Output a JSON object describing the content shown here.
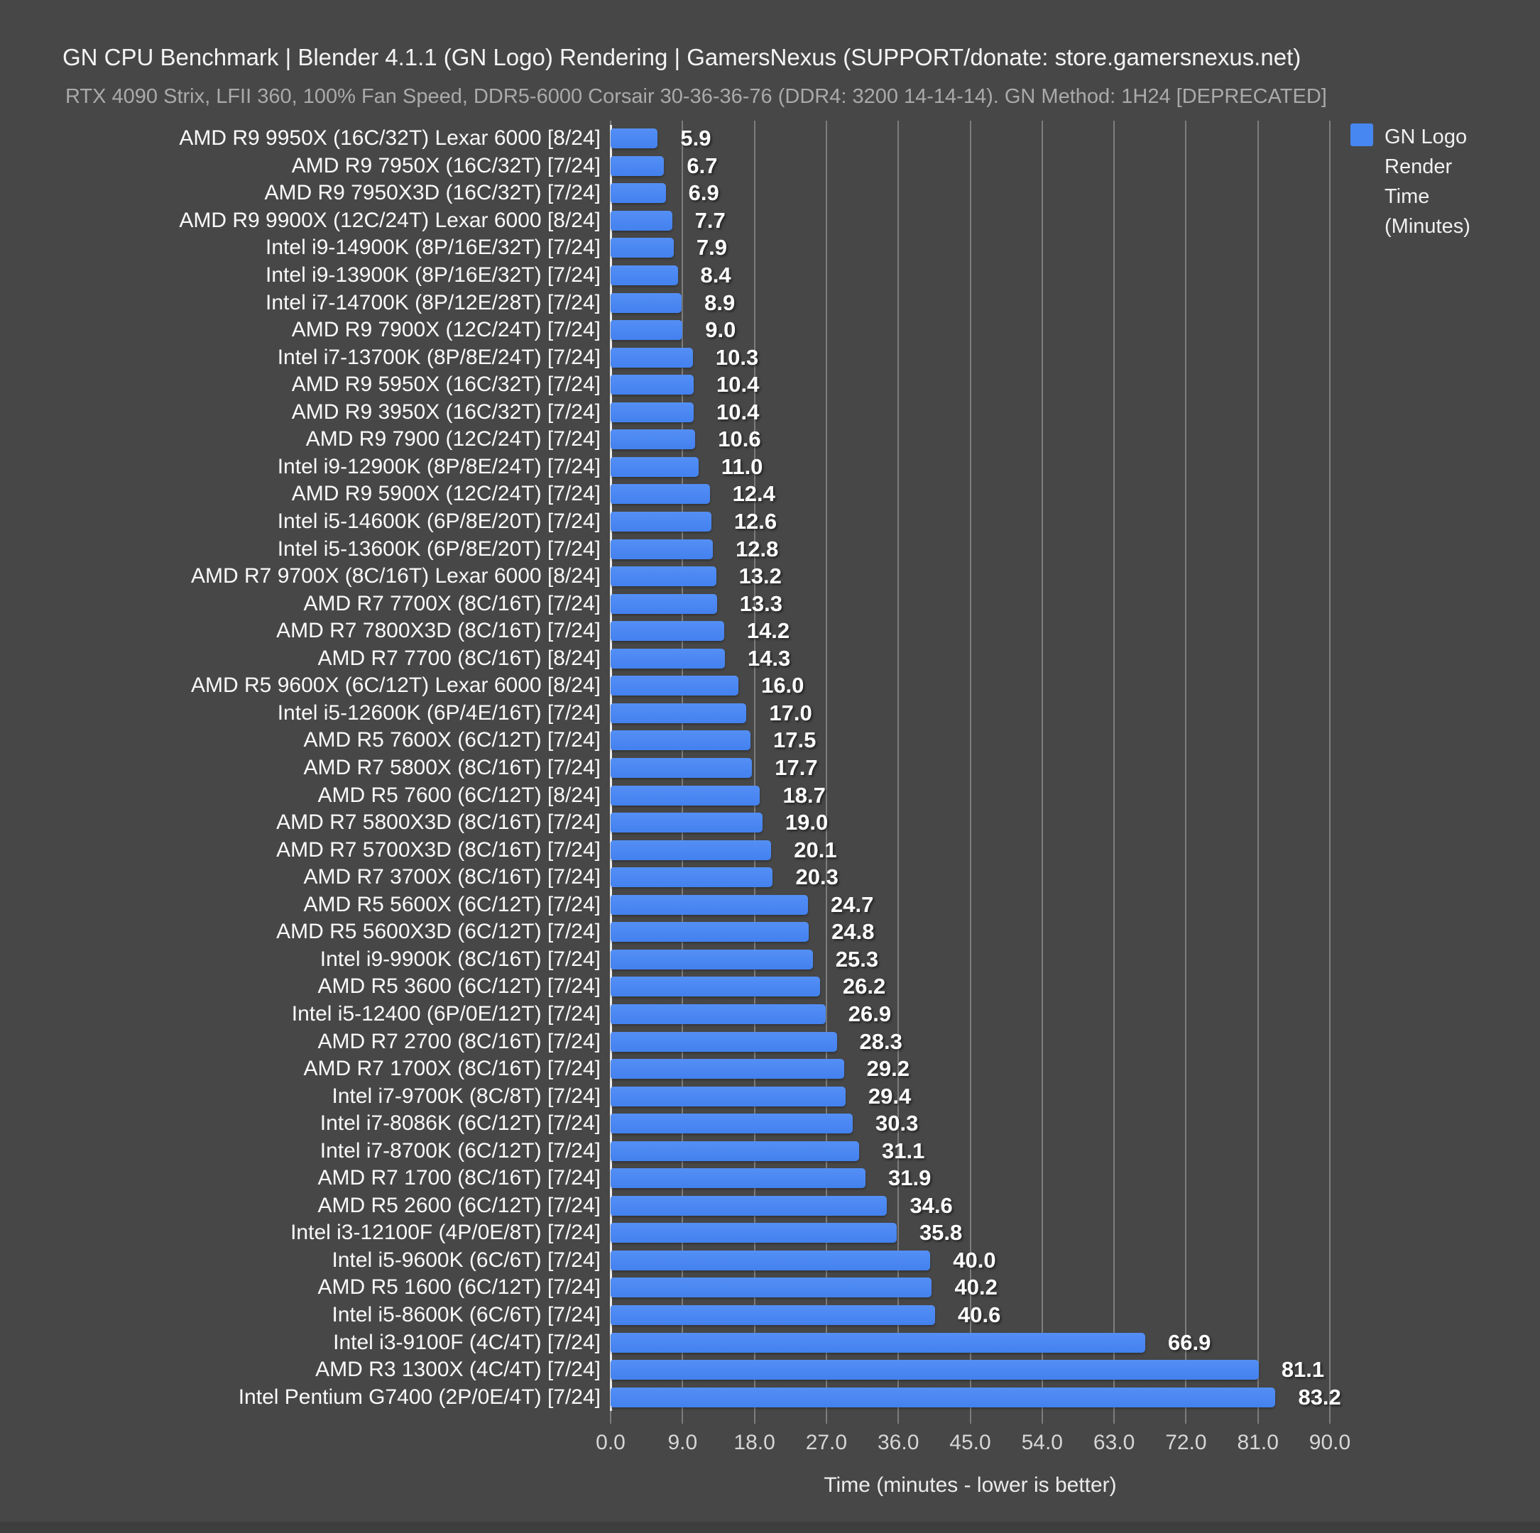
{
  "header": {
    "title": "GN CPU Benchmark | Blender 4.1.1 (GN Logo) Rendering | GamersNexus (SUPPORT/donate: store.gamersnexus.net)",
    "subtitle": "RTX 4090 Strix, LFII 360, 100% Fan Speed, DDR5-6000 Corsair 30-36-36-76 (DDR4: 3200 14-14-14). GN Method: 1H24 [DEPRECATED]"
  },
  "legend": {
    "label": "GN Logo Render Time (Minutes)",
    "swatch_color": "#4787f2"
  },
  "colors": {
    "background": "#474747",
    "bar": "#4787f2",
    "gridline": "#aaaaaa",
    "axis_line": "#ededed",
    "title_text": "#f4f4f4",
    "subtitle_text": "#aaaaaa",
    "value_text": "#ffffff"
  },
  "chart_data": {
    "type": "bar",
    "orientation": "horizontal",
    "title": "GN CPU Benchmark | Blender 4.1.1 (GN Logo) Rendering | GamersNexus (SUPPORT/donate: store.gamersnexus.net)",
    "subtitle": "RTX 4090 Strix, LFII 360, 100% Fan Speed, DDR5-6000 Corsair 30-36-36-76 (DDR4: 3200 14-14-14). GN Method: 1H24 [DEPRECATED]",
    "xlabel": "Time (minutes - lower is better)",
    "ylabel": "",
    "xlim": [
      0,
      90
    ],
    "xticks": [
      0,
      9,
      18,
      27,
      36,
      45,
      54,
      63,
      72,
      81,
      90
    ],
    "grid": true,
    "legend_entries": [
      "GN Logo Render Time (Minutes)"
    ],
    "legend_position": "top-right",
    "value_labels": true,
    "categories": [
      "AMD R9 9950X (16C/32T) Lexar 6000 [8/24]",
      "AMD R9 7950X (16C/32T) [7/24]",
      "AMD R9 7950X3D (16C/32T) [7/24]",
      "AMD R9 9900X (12C/24T) Lexar 6000 [8/24]",
      "Intel i9-14900K (8P/16E/32T) [7/24]",
      "Intel i9-13900K (8P/16E/32T) [7/24]",
      "Intel i7-14700K (8P/12E/28T) [7/24]",
      "AMD R9 7900X (12C/24T) [7/24]",
      "Intel i7-13700K (8P/8E/24T) [7/24]",
      "AMD R9 5950X (16C/32T) [7/24]",
      "AMD R9 3950X (16C/32T) [7/24]",
      "AMD R9 7900 (12C/24T) [7/24]",
      "Intel i9-12900K (8P/8E/24T) [7/24]",
      "AMD R9 5900X (12C/24T) [7/24]",
      "Intel i5-14600K (6P/8E/20T) [7/24]",
      "Intel i5-13600K (6P/8E/20T) [7/24]",
      "AMD R7 9700X (8C/16T) Lexar 6000 [8/24]",
      "AMD R7 7700X (8C/16T) [7/24]",
      "AMD R7 7800X3D (8C/16T) [7/24]",
      "AMD R7 7700 (8C/16T) [8/24]",
      "AMD R5 9600X (6C/12T) Lexar 6000 [8/24]",
      "Intel i5-12600K (6P/4E/16T) [7/24]",
      "AMD R5 7600X (6C/12T) [7/24]",
      "AMD R7 5800X (8C/16T) [7/24]",
      "AMD R5 7600 (6C/12T) [8/24]",
      "AMD R7 5800X3D (8C/16T) [7/24]",
      "AMD R7 5700X3D (8C/16T) [7/24]",
      "AMD R7 3700X (8C/16T) [7/24]",
      "AMD R5 5600X (6C/12T) [7/24]",
      "AMD R5 5600X3D (6C/12T) [7/24]",
      "Intel i9-9900K (8C/16T) [7/24]",
      "AMD R5 3600 (6C/12T) [7/24]",
      "Intel i5-12400 (6P/0E/12T) [7/24]",
      "AMD R7 2700 (8C/16T) [7/24]",
      "AMD R7 1700X (8C/16T) [7/24]",
      "Intel i7-9700K (8C/8T) [7/24]",
      "Intel i7-8086K (6C/12T) [7/24]",
      "Intel i7-8700K (6C/12T) [7/24]",
      "AMD R7 1700 (8C/16T) [7/24]",
      "AMD R5 2600 (6C/12T) [7/24]",
      "Intel i3-12100F (4P/0E/8T) [7/24]",
      "Intel i5-9600K (6C/6T) [7/24]",
      "AMD R5 1600 (6C/12T) [7/24]",
      "Intel i5-8600K (6C/6T) [7/24]",
      "Intel i3-9100F (4C/4T) [7/24]",
      "AMD R3 1300X (4C/4T) [7/24]",
      "Intel Pentium G7400 (2P/0E/4T) [7/24]"
    ],
    "values": [
      5.9,
      6.7,
      6.9,
      7.7,
      7.9,
      8.4,
      8.9,
      9.0,
      10.3,
      10.4,
      10.4,
      10.6,
      11.0,
      12.4,
      12.6,
      12.8,
      13.2,
      13.3,
      14.2,
      14.3,
      16.0,
      17.0,
      17.5,
      17.7,
      18.7,
      19.0,
      20.1,
      20.3,
      24.7,
      24.8,
      25.3,
      26.2,
      26.9,
      28.3,
      29.2,
      29.4,
      30.3,
      31.1,
      31.9,
      34.6,
      35.8,
      40.0,
      40.2,
      40.6,
      66.9,
      81.1,
      83.2
    ]
  }
}
